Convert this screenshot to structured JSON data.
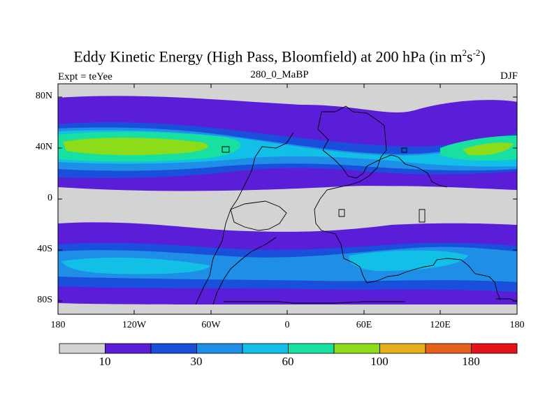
{
  "title": {
    "main": "Eddy Kinetic Energy (High Pass, Bloomfield) at 200 hPa (in m",
    "sup1": "2",
    "mid": "s",
    "sup2": "-2",
    "end": ")"
  },
  "subtitle_left": "Expt = teYee",
  "subtitle_center": "280_0_MaBP",
  "subtitle_right": "DJF",
  "map": {
    "y_ticks": [
      "80N",
      "40N",
      "0",
      "40S",
      "80S"
    ],
    "x_ticks": [
      "180",
      "120W",
      "60W",
      "0",
      "60E",
      "120E",
      "180"
    ]
  },
  "colorbar": {
    "colors": [
      "#d3d3d3",
      "#5a1ed8",
      "#1a4fdc",
      "#1f8ee6",
      "#12bfe6",
      "#17e0a0",
      "#8ddc1a",
      "#e6b01a",
      "#e6621a",
      "#e6121a"
    ],
    "labels": [
      "10",
      "30",
      "60",
      "100",
      "180"
    ]
  }
}
